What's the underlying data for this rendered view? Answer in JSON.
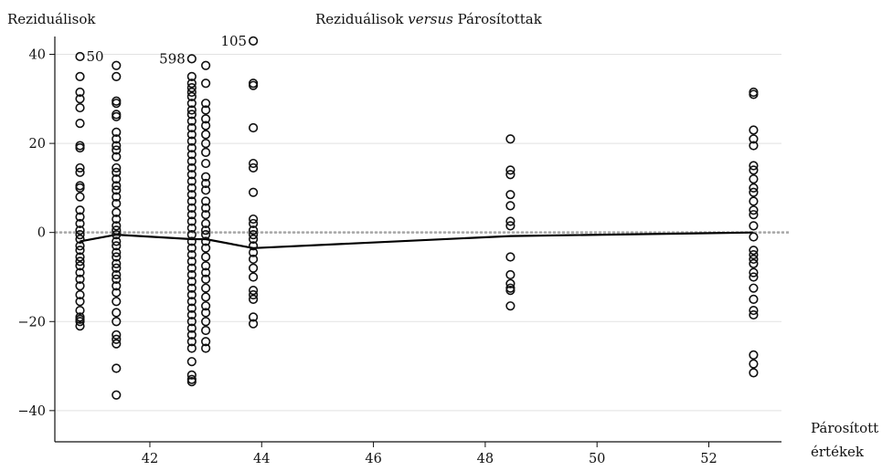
{
  "chart_data": {
    "type": "scatter",
    "title_prefix": "Reziduálisok ",
    "title_italic": "versus",
    "title_suffix": " Párosítottak",
    "ylabel": "Reziduálisok",
    "xlabel_line1": "Párosított",
    "xlabel_line2": "értékek",
    "xlim": [
      40.3,
      53.3
    ],
    "ylim": [
      -47,
      44
    ],
    "xticks": [
      42,
      44,
      46,
      48,
      50,
      52
    ],
    "yticks": [
      -40,
      -20,
      0,
      20,
      40
    ],
    "grid": true,
    "reference_line_y": 0,
    "smooth_line": [
      {
        "x": 40.75,
        "y": -2.0
      },
      {
        "x": 41.4,
        "y": -0.5
      },
      {
        "x": 42.75,
        "y": -1.5
      },
      {
        "x": 43.0,
        "y": -1.5
      },
      {
        "x": 43.85,
        "y": -3.5
      },
      {
        "x": 48.45,
        "y": -0.8
      },
      {
        "x": 52.8,
        "y": 0.0
      }
    ],
    "annotations": [
      {
        "label": "50",
        "x": 40.75,
        "y": 39.5
      },
      {
        "label": "598",
        "x": 42.75,
        "y": 39.0
      },
      {
        "label": "105",
        "x": 43.85,
        "y": 43.0
      }
    ],
    "columns": [
      {
        "x": 40.75,
        "y": [
          39.5,
          35,
          31.5,
          30,
          28,
          24.5,
          19.5,
          19,
          14.5,
          13.5,
          10.5,
          10,
          8,
          5,
          3.5,
          2,
          0.5,
          -0.5,
          -1.5,
          -3,
          -4,
          -5.5,
          -6.5,
          -7.5,
          -9,
          -10.5,
          -12,
          -14,
          -15.5,
          -17.5,
          -19,
          -19.5,
          -20,
          -21
        ]
      },
      {
        "x": 41.4,
        "y": [
          37.5,
          35,
          29.5,
          29,
          26.5,
          26,
          22.5,
          21,
          19.5,
          18.5,
          17,
          14.5,
          13.5,
          12,
          10.5,
          9.5,
          8,
          6.5,
          4.5,
          3,
          1.5,
          0.5,
          -0.5,
          -2,
          -3,
          -4.5,
          -5.5,
          -7,
          -8,
          -9.5,
          -10.5,
          -12,
          -13.5,
          -15.5,
          -18,
          -20,
          -23,
          -24,
          -25,
          -30.5,
          -36.5
        ]
      },
      {
        "x": 42.75,
        "y": [
          39,
          35,
          33.5,
          32.5,
          31.5,
          30.5,
          29,
          27.5,
          26.5,
          25,
          23.5,
          22,
          20.5,
          19,
          17.5,
          16,
          14.5,
          13,
          11.5,
          10,
          8.5,
          7,
          5.5,
          4,
          2.5,
          1,
          -0.5,
          -2,
          -3.5,
          -5,
          -6.5,
          -8,
          -9.5,
          -11,
          -12.5,
          -14,
          -15.5,
          -17,
          -18.5,
          -20,
          -21.5,
          -23,
          -24.5,
          -26,
          -29,
          -32,
          -33,
          -33.5
        ]
      },
      {
        "x": 43.0,
        "y": [
          37.5,
          33.5,
          29,
          27.5,
          25.5,
          24,
          22,
          20,
          18,
          15.5,
          12.5,
          11,
          9.5,
          7,
          5.5,
          4,
          2,
          0.5,
          -0.5,
          -2,
          -3.5,
          -5.5,
          -7.5,
          -9,
          -10.5,
          -12.5,
          -14.5,
          -16.5,
          -18,
          -20,
          -22,
          -24.5,
          -26
        ]
      },
      {
        "x": 43.85,
        "y": [
          43,
          33.5,
          33,
          23.5,
          15.5,
          14.5,
          9,
          3,
          2,
          0.5,
          -0.5,
          -1.5,
          -3,
          -4.5,
          -6,
          -8,
          -10,
          -13,
          -14,
          -15,
          -19,
          -20.5
        ]
      },
      {
        "x": 48.45,
        "y": [
          21,
          14,
          13,
          8.5,
          6,
          2.5,
          1.5,
          -5.5,
          -9.5,
          -11.5,
          -12.5,
          -13,
          -16.5
        ]
      },
      {
        "x": 52.8,
        "y": [
          31.5,
          31,
          23,
          21,
          19.5,
          15,
          14,
          12,
          10,
          9,
          7,
          5,
          4,
          1.5,
          -1,
          -4,
          -5,
          -6,
          -7,
          -9,
          -10,
          -12.5,
          -15,
          -17.5,
          -18.5,
          -27.5,
          -29.5,
          -31.5
        ]
      }
    ]
  }
}
